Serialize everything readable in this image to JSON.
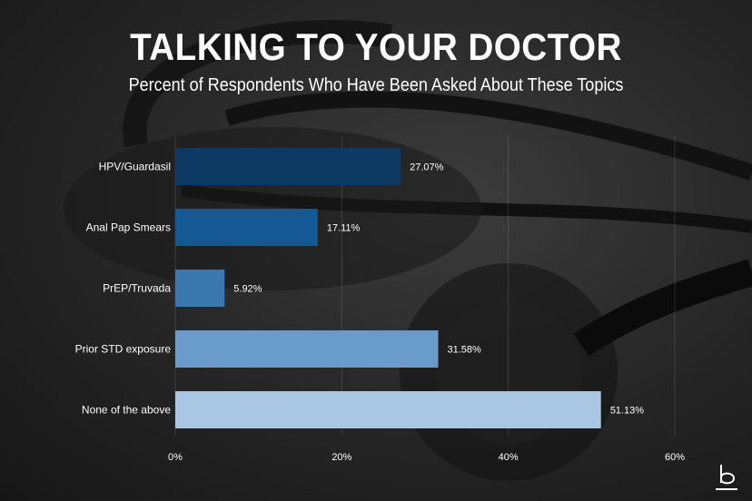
{
  "header": {
    "title": "TALKING TO YOUR DOCTOR",
    "subtitle": "Percent of Respondents Who Have Been Asked About These Topics"
  },
  "colors": {
    "bars": [
      "#0d3a63",
      "#145894",
      "#3a78ad",
      "#6a9ccb",
      "#a9c6e2"
    ]
  },
  "chart_data": {
    "type": "bar",
    "orientation": "horizontal",
    "title": "TALKING TO YOUR DOCTOR",
    "subtitle": "Percent of Respondents Who Have Been Asked About These Topics",
    "categories": [
      "HPV/Guardasil",
      "Anal Pap Smears",
      "PrEP/Truvada",
      "Prior STD exposure",
      "None of the above"
    ],
    "values": [
      27.07,
      17.11,
      5.92,
      31.58,
      51.13
    ],
    "value_labels": [
      "27.07%",
      "17.11%",
      "5.92%",
      "31.58%",
      "51.13%"
    ],
    "xlim": [
      0,
      60
    ],
    "xticks": [
      0,
      20,
      40,
      60
    ],
    "xtick_labels": [
      "0%",
      "20%",
      "40%",
      "60%"
    ],
    "grid": true,
    "legend": "none"
  },
  "logo": {
    "icon": "b-logo-icon"
  }
}
